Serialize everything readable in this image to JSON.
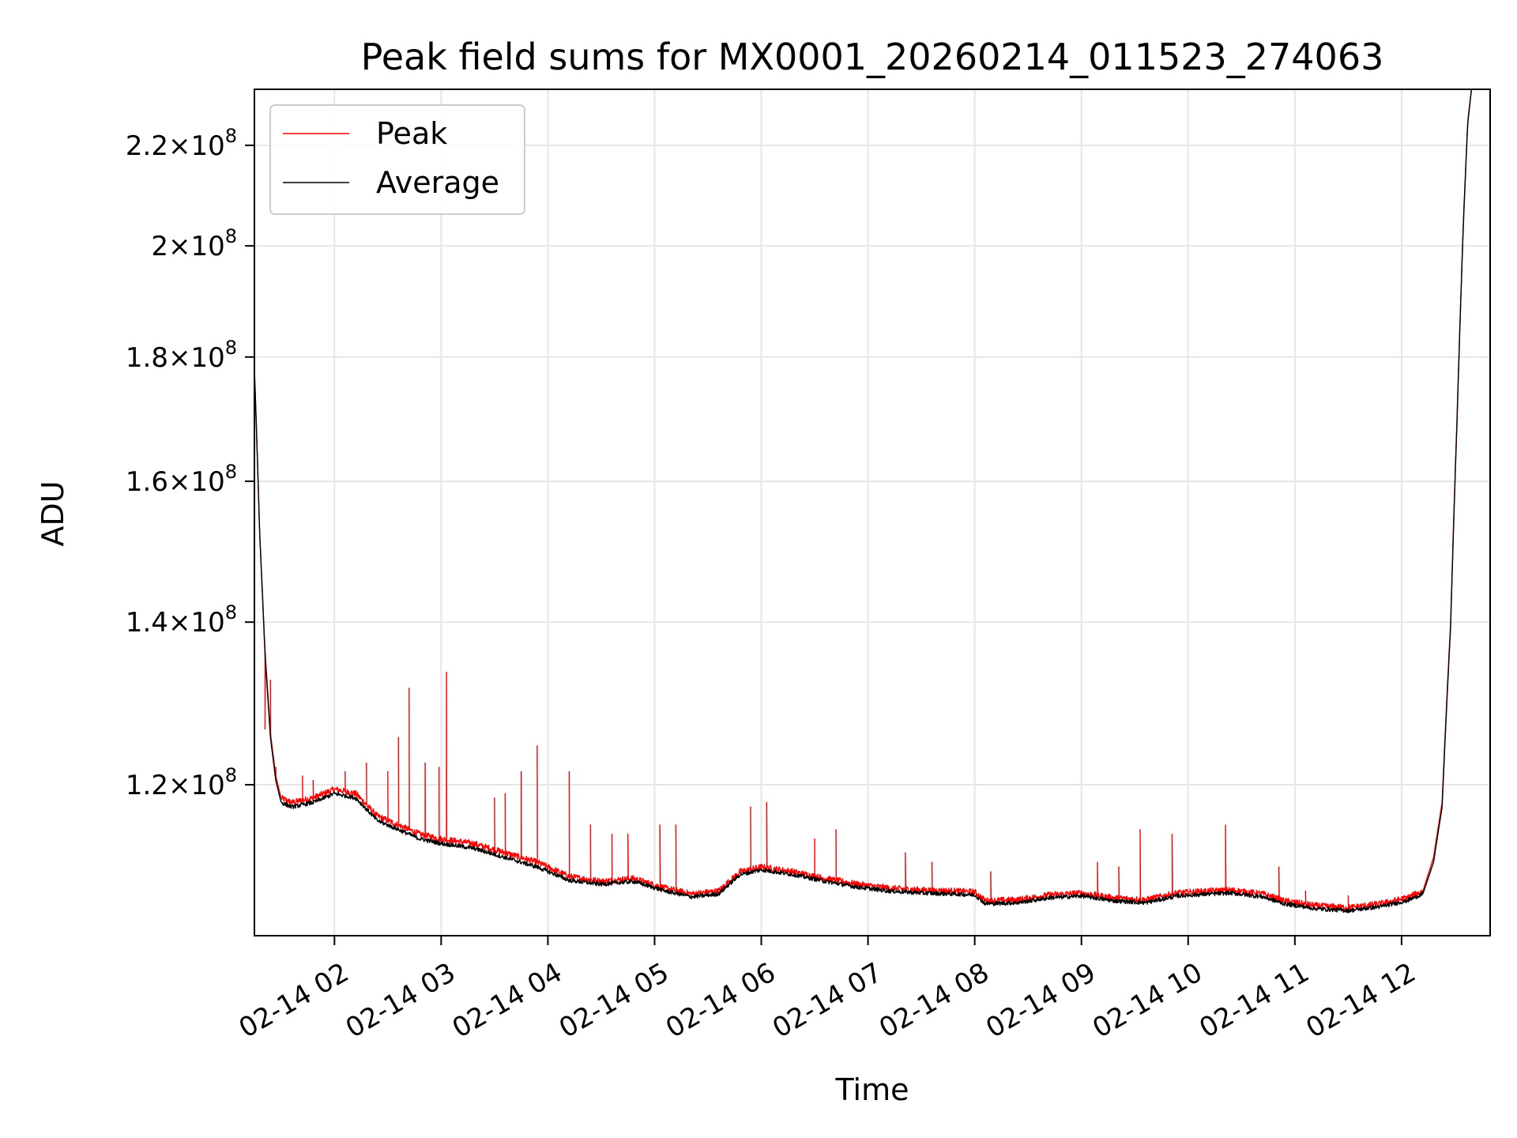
{
  "chart_data": {
    "type": "line",
    "title": "Peak field sums for MX0001_20260214_011523_274063",
    "xlabel": "Time",
    "ylabel": "ADU",
    "yscale": "log",
    "grid": true,
    "legend_position": "top-left",
    "xlim": [
      1.25,
      12.83
    ],
    "ylim": [
      104000000,
      232000000
    ],
    "x_ticks": [
      {
        "value": 2,
        "label": "02-14 02"
      },
      {
        "value": 3,
        "label": "02-14 03"
      },
      {
        "value": 4,
        "label": "02-14 04"
      },
      {
        "value": 5,
        "label": "02-14 05"
      },
      {
        "value": 6,
        "label": "02-14 06"
      },
      {
        "value": 7,
        "label": "02-14 07"
      },
      {
        "value": 8,
        "label": "02-14 08"
      },
      {
        "value": 9,
        "label": "02-14 09"
      },
      {
        "value": 10,
        "label": "02-14 10"
      },
      {
        "value": 11,
        "label": "02-14 11"
      },
      {
        "value": 12,
        "label": "02-14 12"
      }
    ],
    "y_ticks": [
      {
        "value": 120000000,
        "mantissa": "1.2",
        "exponent": "8"
      },
      {
        "value": 140000000,
        "mantissa": "1.4",
        "exponent": "8"
      },
      {
        "value": 160000000,
        "mantissa": "1.6",
        "exponent": "8"
      },
      {
        "value": 180000000,
        "mantissa": "1.8",
        "exponent": "8"
      },
      {
        "value": 200000000,
        "mantissa": "2",
        "exponent": "8"
      },
      {
        "value": 220000000,
        "mantissa": "2.2",
        "exponent": "8"
      }
    ],
    "series": [
      {
        "name": "Peak",
        "color": "#ff0000",
        "base_points": [
          [
            1.25,
            178000000.0
          ],
          [
            1.3,
            152000000.0
          ],
          [
            1.35,
            136000000.0
          ],
          [
            1.4,
            126000000.0
          ],
          [
            1.45,
            121000000.0
          ],
          [
            1.5,
            118500000.0
          ],
          [
            1.6,
            118000000.0
          ],
          [
            1.8,
            118500000.0
          ],
          [
            2.0,
            119500000.0
          ],
          [
            2.2,
            119000000.0
          ],
          [
            2.4,
            116500000.0
          ],
          [
            2.6,
            115500000.0
          ],
          [
            2.8,
            114500000.0
          ],
          [
            3.0,
            114000000.0
          ],
          [
            3.3,
            113500000.0
          ],
          [
            3.6,
            112500000.0
          ],
          [
            3.9,
            111500000.0
          ],
          [
            4.2,
            110000000.0
          ],
          [
            4.5,
            109500000.0
          ],
          [
            4.8,
            109800000.0
          ],
          [
            5.1,
            108800000.0
          ],
          [
            5.35,
            108200000.0
          ],
          [
            5.6,
            108500000.0
          ],
          [
            5.8,
            110500000.0
          ],
          [
            6.0,
            111000000.0
          ],
          [
            6.3,
            110500000.0
          ],
          [
            6.6,
            109800000.0
          ],
          [
            6.9,
            109200000.0
          ],
          [
            7.2,
            108800000.0
          ],
          [
            7.5,
            108600000.0
          ],
          [
            7.8,
            108500000.0
          ],
          [
            8.0,
            108400000.0
          ],
          [
            8.1,
            107500000.0
          ],
          [
            8.4,
            107600000.0
          ],
          [
            8.7,
            108100000.0
          ],
          [
            9.0,
            108300000.0
          ],
          [
            9.3,
            107800000.0
          ],
          [
            9.6,
            107600000.0
          ],
          [
            9.9,
            108300000.0
          ],
          [
            10.2,
            108500000.0
          ],
          [
            10.4,
            108600000.0
          ],
          [
            10.7,
            108200000.0
          ],
          [
            10.9,
            107500000.0
          ],
          [
            11.2,
            107000000.0
          ],
          [
            11.5,
            106800000.0
          ],
          [
            11.8,
            107200000.0
          ],
          [
            12.05,
            107800000.0
          ],
          [
            12.2,
            108500000.0
          ],
          [
            12.3,
            112000000.0
          ],
          [
            12.38,
            118000000.0
          ],
          [
            12.46,
            140000000.0
          ],
          [
            12.52,
            170000000.0
          ],
          [
            12.58,
            205000000.0
          ],
          [
            12.62,
            225000000.0
          ],
          [
            12.66,
            233000000.0
          ]
        ],
        "spikes": [
          [
            1.35,
            126500000.0
          ],
          [
            1.4,
            132500000.0
          ],
          [
            1.45,
            122000000.0
          ],
          [
            1.7,
            121000000.0
          ],
          [
            1.8,
            120500000.0
          ],
          [
            2.1,
            121500000.0
          ],
          [
            2.3,
            122500000.0
          ],
          [
            2.5,
            121500000.0
          ],
          [
            2.6,
            125500000.0
          ],
          [
            2.7,
            131500000.0
          ],
          [
            2.85,
            122500000.0
          ],
          [
            2.98,
            122000000.0
          ],
          [
            3.05,
            133500000.0
          ],
          [
            3.5,
            118500000.0
          ],
          [
            3.6,
            119000000.0
          ],
          [
            3.75,
            121500000.0
          ],
          [
            3.9,
            124500000.0
          ],
          [
            4.2,
            121500000.0
          ],
          [
            4.4,
            115500000.0
          ],
          [
            4.6,
            114500000.0
          ],
          [
            4.75,
            114500000.0
          ],
          [
            5.05,
            115500000.0
          ],
          [
            5.2,
            115500000.0
          ],
          [
            5.9,
            117500000.0
          ],
          [
            6.05,
            118000000.0
          ],
          [
            6.5,
            114000000.0
          ],
          [
            6.7,
            115000000.0
          ],
          [
            7.35,
            112500000.0
          ],
          [
            7.6,
            111500000.0
          ],
          [
            8.15,
            110500000.0
          ],
          [
            9.15,
            111500000.0
          ],
          [
            9.35,
            111000000.0
          ],
          [
            9.55,
            115000000.0
          ],
          [
            9.85,
            114500000.0
          ],
          [
            10.35,
            115500000.0
          ],
          [
            10.85,
            111000000.0
          ],
          [
            11.1,
            108500000.0
          ],
          [
            11.5,
            108000000.0
          ]
        ]
      },
      {
        "name": "Average",
        "color": "#000000",
        "points": [
          [
            1.25,
            178000000.0
          ],
          [
            1.3,
            152000000.0
          ],
          [
            1.35,
            135500000.0
          ],
          [
            1.4,
            125500000.0
          ],
          [
            1.45,
            120500000.0
          ],
          [
            1.5,
            118000000.0
          ],
          [
            1.6,
            117500000.0
          ],
          [
            1.8,
            118000000.0
          ],
          [
            2.0,
            119000000.0
          ],
          [
            2.2,
            118500000.0
          ],
          [
            2.4,
            116000000.0
          ],
          [
            2.6,
            115000000.0
          ],
          [
            2.8,
            114000000.0
          ],
          [
            3.0,
            113500000.0
          ],
          [
            3.3,
            113000000.0
          ],
          [
            3.6,
            112000000.0
          ],
          [
            3.9,
            111000000.0
          ],
          [
            4.2,
            109600000.0
          ],
          [
            4.5,
            109200000.0
          ],
          [
            4.8,
            109500000.0
          ],
          [
            5.1,
            108500000.0
          ],
          [
            5.35,
            107900000.0
          ],
          [
            5.6,
            108200000.0
          ],
          [
            5.8,
            110200000.0
          ],
          [
            6.0,
            110700000.0
          ],
          [
            6.3,
            110200000.0
          ],
          [
            6.6,
            109500000.0
          ],
          [
            6.9,
            108900000.0
          ],
          [
            7.2,
            108500000.0
          ],
          [
            7.5,
            108300000.0
          ],
          [
            7.8,
            108200000.0
          ],
          [
            8.0,
            108100000.0
          ],
          [
            8.1,
            107200000.0
          ],
          [
            8.4,
            107300000.0
          ],
          [
            8.7,
            107800000.0
          ],
          [
            9.0,
            108000000.0
          ],
          [
            9.3,
            107500000.0
          ],
          [
            9.6,
            107300000.0
          ],
          [
            9.9,
            108000000.0
          ],
          [
            10.2,
            108200000.0
          ],
          [
            10.4,
            108300000.0
          ],
          [
            10.7,
            107900000.0
          ],
          [
            10.9,
            107200000.0
          ],
          [
            11.2,
            106700000.0
          ],
          [
            11.5,
            106500000.0
          ],
          [
            11.8,
            106900000.0
          ],
          [
            12.05,
            107500000.0
          ],
          [
            12.2,
            108200000.0
          ],
          [
            12.3,
            111500000.0
          ],
          [
            12.38,
            117500000.0
          ],
          [
            12.46,
            139500000.0
          ],
          [
            12.52,
            169500000.0
          ],
          [
            12.58,
            204500000.0
          ],
          [
            12.62,
            224500000.0
          ],
          [
            12.66,
            233000000.0
          ]
        ]
      }
    ]
  }
}
